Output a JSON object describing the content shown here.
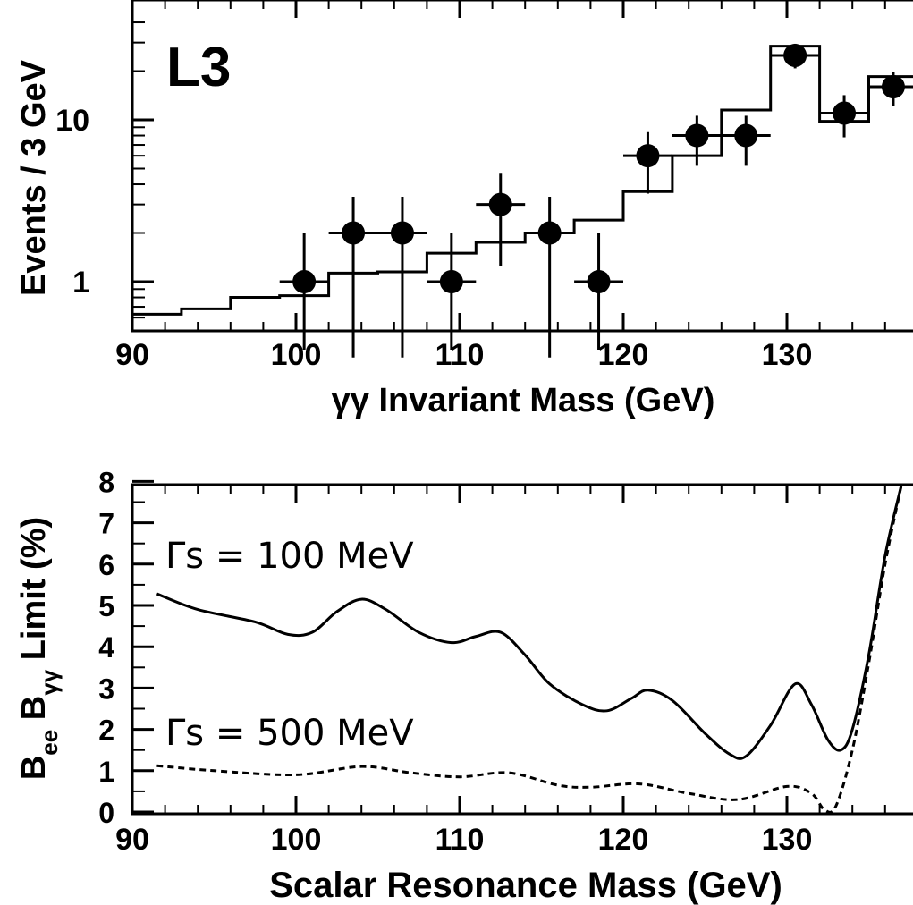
{
  "chart_data": [
    {
      "type": "scatter",
      "experiment_label": "L3",
      "xlabel": "γγ Invariant Mass (GeV)",
      "ylabel": "Events / 3 GeV",
      "yscale": "log",
      "xlim": [
        90,
        138
      ],
      "ylim": [
        0.55,
        45
      ],
      "x_ticks": [
        90,
        100,
        110,
        120,
        130
      ],
      "x_tick_labels": [
        "90",
        "100",
        "110",
        "120",
        "130"
      ],
      "y_ticks": [
        1,
        10
      ],
      "y_tick_labels": [
        "1",
        "10"
      ],
      "grid": false,
      "data_points": [
        {
          "x": 100.5,
          "y": 1,
          "xerr": 1.5,
          "ylo": 0.38,
          "yhi": 2.0
        },
        {
          "x": 103.5,
          "y": 2,
          "xerr": 1.5,
          "ylo": 0.34,
          "yhi": 3.35
        },
        {
          "x": 106.5,
          "y": 2,
          "xerr": 1.5,
          "ylo": 0.34,
          "yhi": 3.35
        },
        {
          "x": 109.5,
          "y": 1,
          "xerr": 1.5,
          "ylo": 0.38,
          "yhi": 2.0
        },
        {
          "x": 112.5,
          "y": 3,
          "xerr": 1.5,
          "ylo": 1.25,
          "yhi": 4.65
        },
        {
          "x": 115.5,
          "y": 2,
          "xerr": 1.5,
          "ylo": 0.34,
          "yhi": 3.35
        },
        {
          "x": 118.5,
          "y": 1,
          "xerr": 1.5,
          "ylo": 0.38,
          "yhi": 2.0
        },
        {
          "x": 121.5,
          "y": 6,
          "xerr": 1.5,
          "ylo": 3.5,
          "yhi": 8.4
        },
        {
          "x": 124.5,
          "y": 8,
          "xerr": 1.5,
          "ylo": 5.2,
          "yhi": 10.6
        },
        {
          "x": 127.5,
          "y": 8,
          "xerr": 1.5,
          "ylo": 5.2,
          "yhi": 10.6
        },
        {
          "x": 130.5,
          "y": 25,
          "xerr": 1.5,
          "ylo": 20.8,
          "yhi": 29.5
        },
        {
          "x": 133.5,
          "y": 11,
          "xerr": 1.5,
          "ylo": 7.8,
          "yhi": 14.2
        },
        {
          "x": 136.5,
          "y": 16,
          "xerr": 1.5,
          "ylo": 12.2,
          "yhi": 19.8
        }
      ],
      "histogram_edges": [
        90,
        93,
        96,
        99,
        102,
        105,
        108,
        111,
        114,
        117,
        120,
        123,
        126,
        129,
        132,
        135,
        138
      ],
      "histogram_values": [
        0.63,
        0.68,
        0.8,
        0.82,
        1.13,
        1.15,
        1.5,
        1.75,
        2.0,
        2.4,
        3.6,
        6.0,
        11.5,
        28.5,
        9.8,
        18.5
      ]
    },
    {
      "type": "line",
      "xlabel": "Scalar Resonance Mass (GeV)",
      "ylabel_main": "B",
      "ylabel_sub1": "ee",
      "ylabel_mid": " B",
      "ylabel_sub2": "γγ",
      "ylabel_tail": " Limit (%)",
      "xlim": [
        90,
        138
      ],
      "ylim": [
        0,
        8
      ],
      "x_ticks": [
        90,
        100,
        110,
        120,
        130
      ],
      "x_tick_labels": [
        "90",
        "100",
        "110",
        "120",
        "130"
      ],
      "y_ticks": [
        0,
        1,
        2,
        3,
        4,
        5,
        6,
        7,
        8
      ],
      "y_tick_labels": [
        "0",
        "1",
        "2",
        "3",
        "4",
        "5",
        "6",
        "7",
        "8"
      ],
      "grid": false,
      "annotations": [
        "Γs = 100 MeV",
        "Γs = 500 MeV"
      ],
      "series": [
        {
          "style": "solid",
          "x": [
            91.5,
            94,
            97.5,
            99.5,
            101,
            102.5,
            104,
            105.5,
            107.5,
            109.5,
            111,
            112.5,
            114,
            115.5,
            117.5,
            119,
            120.5,
            121.5,
            123,
            125,
            126.5,
            127.5,
            129,
            130.5,
            131.5,
            132.5,
            133.3,
            134,
            135,
            136,
            137
          ],
          "y": [
            5.28,
            4.9,
            4.6,
            4.3,
            4.35,
            4.85,
            5.15,
            4.9,
            4.35,
            4.1,
            4.25,
            4.35,
            3.8,
            3.1,
            2.6,
            2.45,
            2.75,
            2.95,
            2.7,
            1.9,
            1.4,
            1.35,
            2.1,
            3.1,
            2.6,
            1.75,
            1.5,
            2.0,
            3.8,
            6.2,
            8.0
          ]
        },
        {
          "style": "dashed",
          "x": [
            91.5,
            95,
            100,
            104,
            107,
            110,
            113,
            116,
            118,
            121,
            124,
            127,
            130,
            131.5,
            132.3,
            133,
            134,
            135,
            136,
            137
          ],
          "y": [
            1.12,
            1.0,
            0.9,
            1.1,
            0.95,
            0.85,
            0.95,
            0.65,
            0.6,
            0.68,
            0.45,
            0.3,
            0.62,
            0.45,
            0.05,
            0.15,
            1.5,
            3.6,
            6.0,
            8.0
          ]
        }
      ]
    }
  ]
}
